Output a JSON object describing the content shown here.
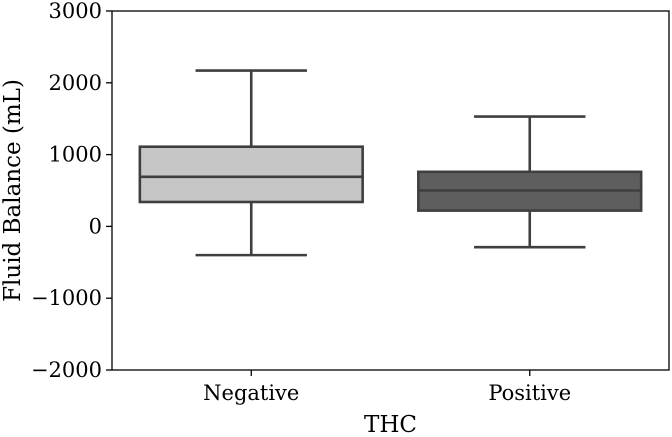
{
  "chart_data": {
    "type": "boxplot",
    "xlabel": "THC",
    "ylabel": "Fluid Balance (mL)",
    "ylim": [
      -2000,
      3000
    ],
    "yticks": [
      -2000,
      -1000,
      0,
      1000,
      2000,
      3000
    ],
    "ytick_labels": [
      "−2000",
      "−1000",
      "0",
      "1000",
      "2000",
      "3000"
    ],
    "categories": [
      "Negative",
      "Positive"
    ],
    "boxes": [
      {
        "category": "Negative",
        "whisker_low": -400,
        "q1": 340,
        "median": 690,
        "q3": 1110,
        "whisker_high": 2170,
        "color": "#c6c6c6"
      },
      {
        "category": "Positive",
        "whisker_low": -290,
        "q1": 220,
        "median": 500,
        "q3": 760,
        "whisker_high": 1530,
        "color": "#5e5e5e"
      }
    ],
    "grid": false,
    "legend": "none"
  }
}
